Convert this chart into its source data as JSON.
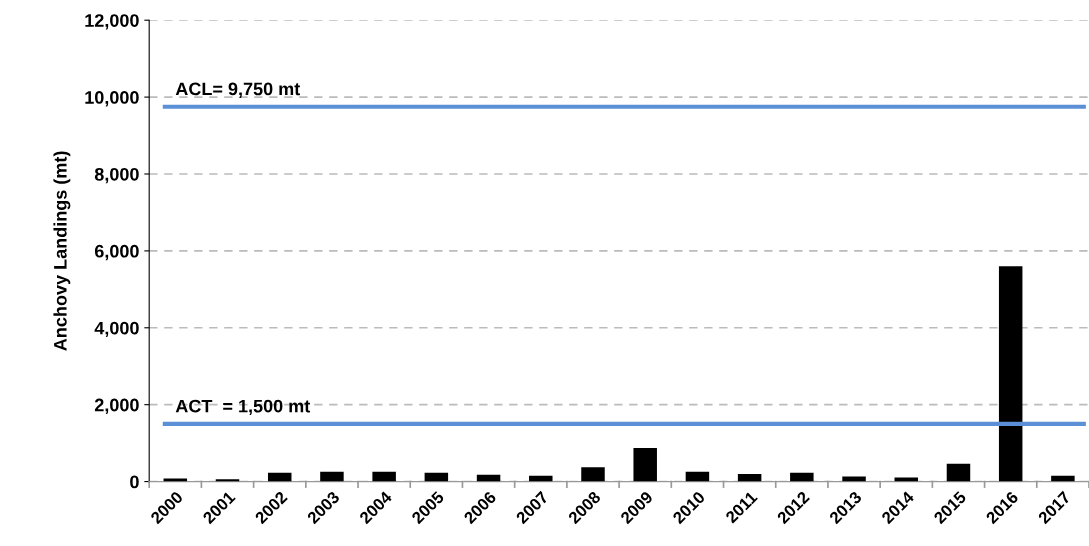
{
  "chart_data": {
    "type": "bar",
    "ylabel": "Anchovy Landings (mt)",
    "categories": [
      "2000",
      "2001",
      "2002",
      "2003",
      "2004",
      "2005",
      "2006",
      "2007",
      "2008",
      "2009",
      "2010",
      "2011",
      "2012",
      "2013",
      "2014",
      "2015",
      "2016",
      "2017"
    ],
    "values": [
      80,
      60,
      230,
      255,
      255,
      230,
      175,
      150,
      370,
      870,
      255,
      200,
      230,
      130,
      105,
      465,
      5600,
      150
    ],
    "color": "#000000",
    "ylim": [
      0,
      12000
    ],
    "yticks": [
      {
        "value": 0,
        "label": "0"
      },
      {
        "value": 2000,
        "label": "2,000"
      },
      {
        "value": 4000,
        "label": "4,000"
      },
      {
        "value": 6000,
        "label": "6,000"
      },
      {
        "value": 8000,
        "label": "8,000"
      },
      {
        "value": 10000,
        "label": "10,000"
      },
      {
        "value": 12000,
        "label": "12,000"
      }
    ],
    "grid": "y",
    "ref_lines": [
      {
        "axis": "y",
        "value": 9750,
        "label": "ACL= 9,750 mt",
        "color": "#5b8fd6"
      },
      {
        "axis": "y",
        "value": 1500,
        "label": "ACT  = 1,500 mt",
        "color": "#5b8fd6"
      }
    ]
  }
}
